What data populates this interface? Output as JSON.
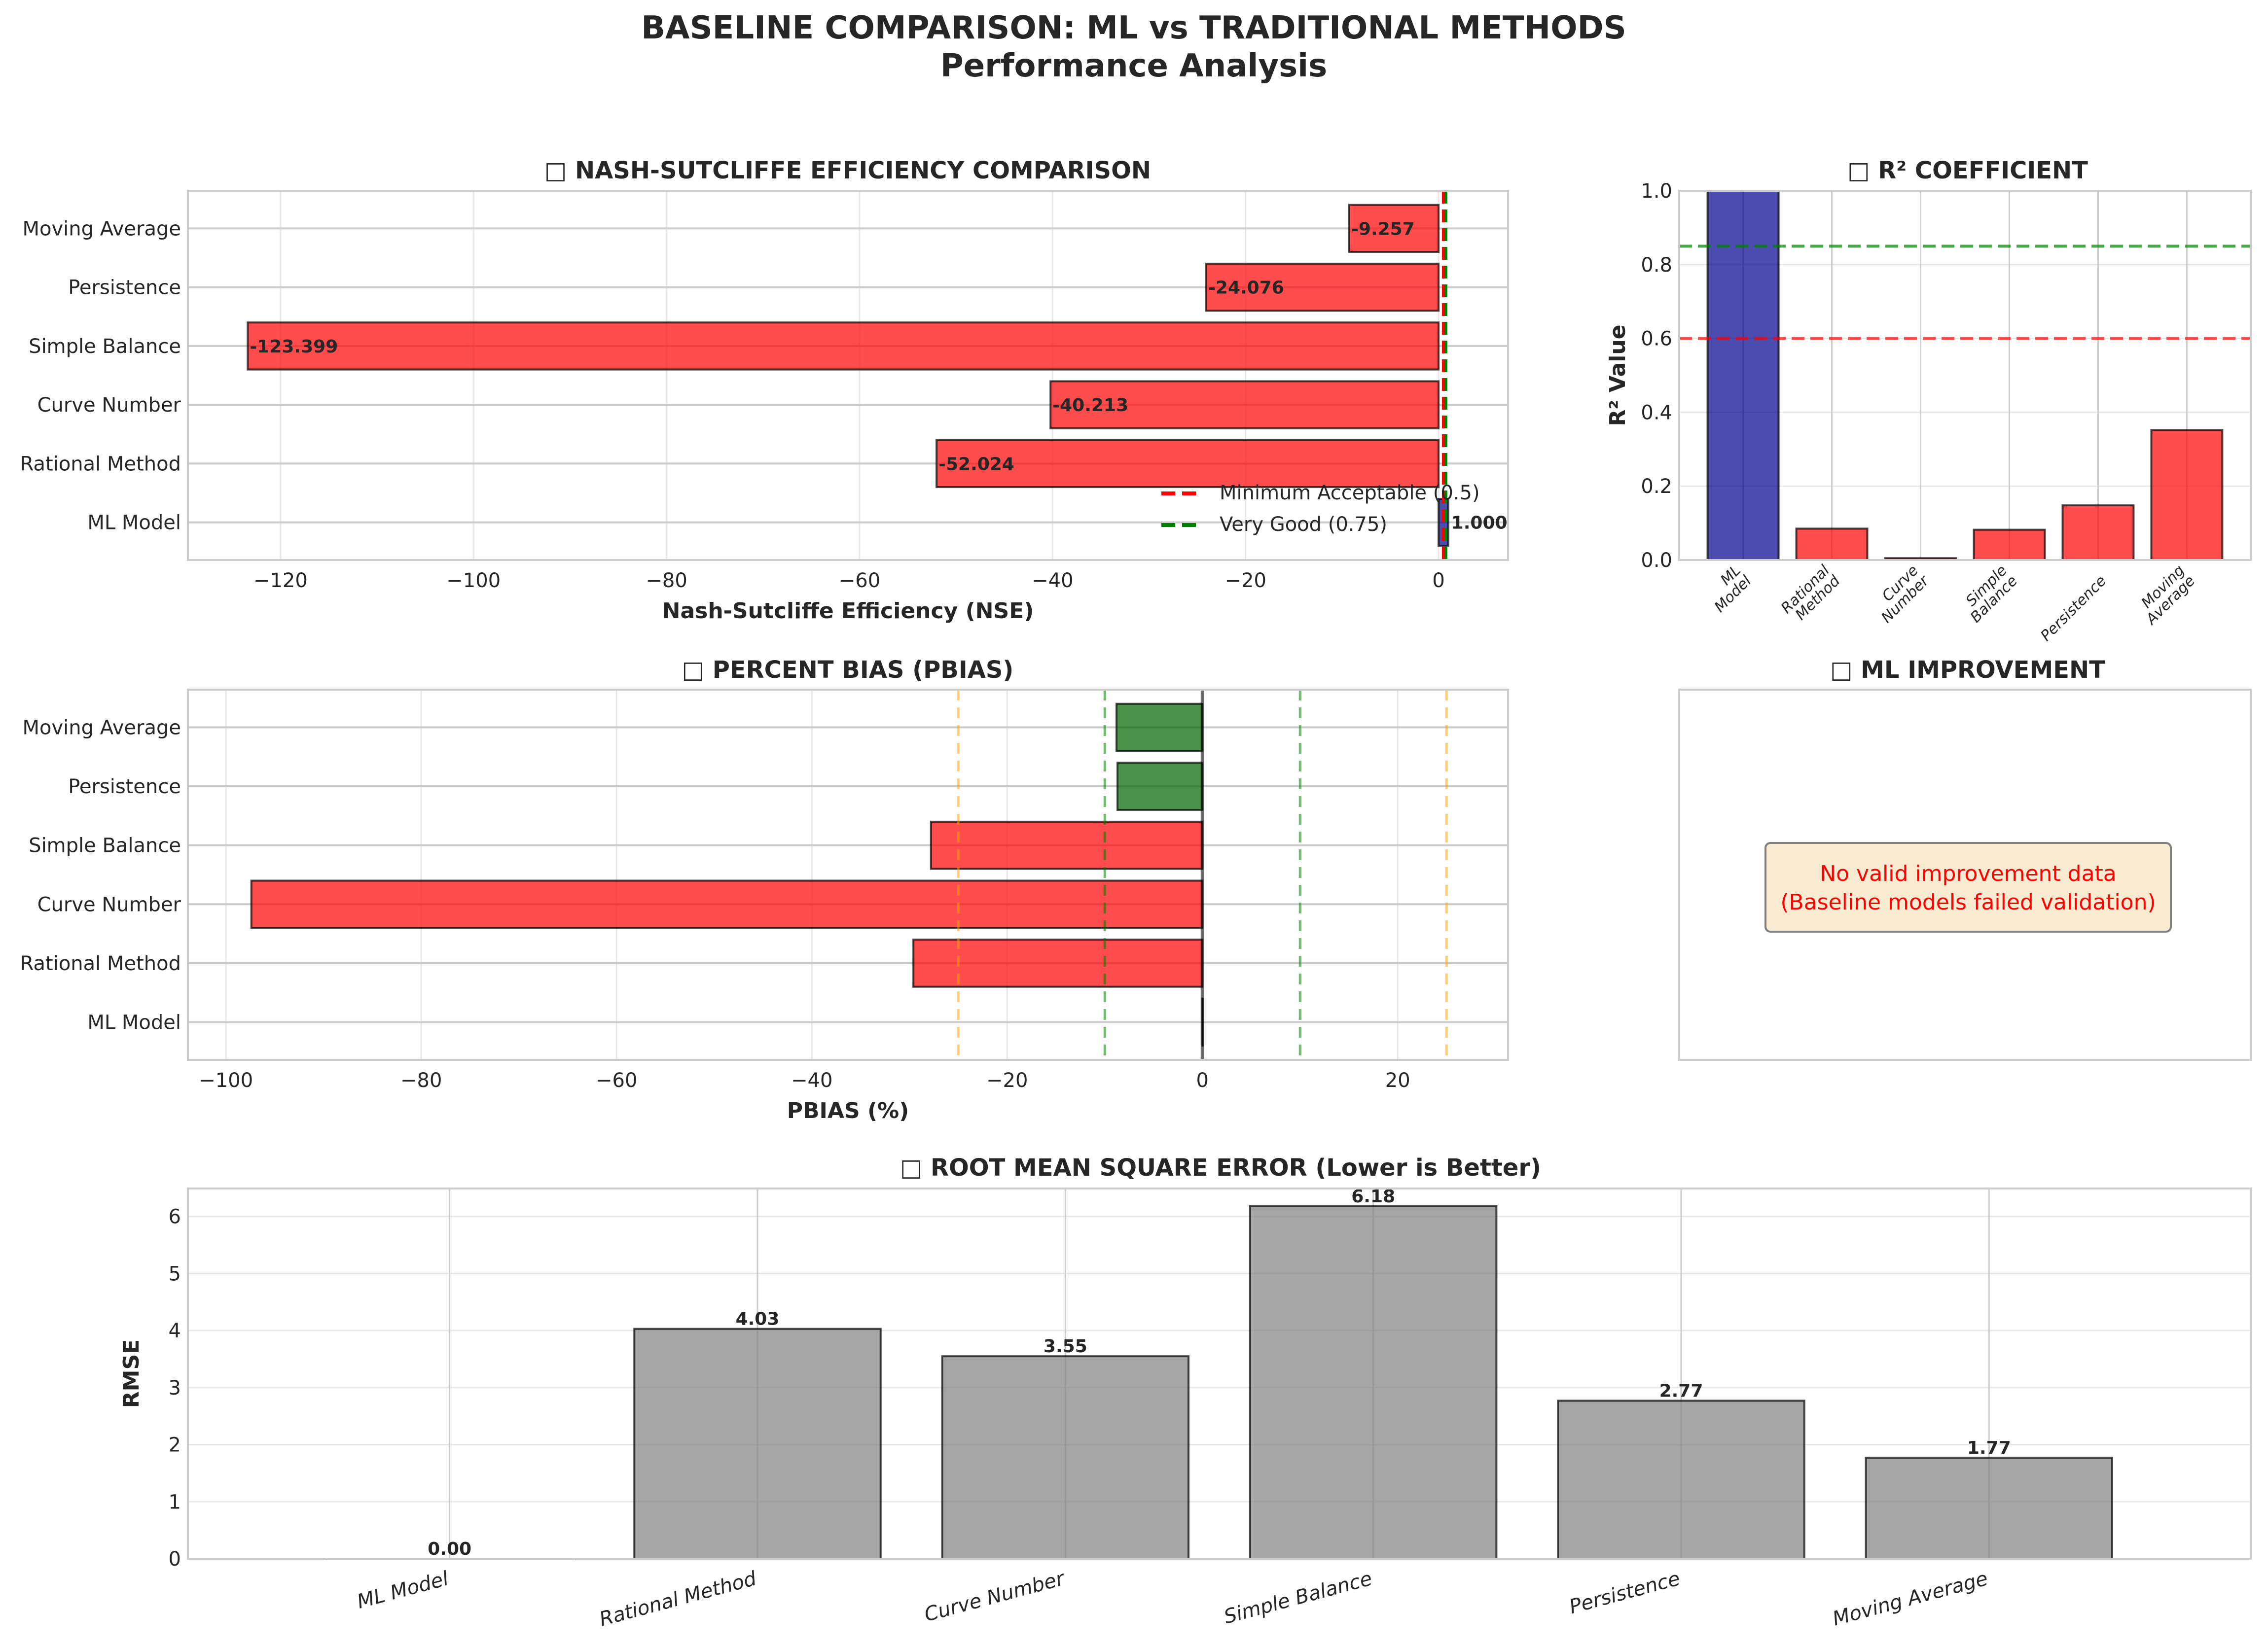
{
  "title": {
    "line1": "BASELINE COMPARISON: ML vs TRADITIONAL METHODS",
    "line2": "Performance Analysis"
  },
  "colors": {
    "ml": "#00008b",
    "fail": "#ff0000",
    "good": "#006400",
    "rmse": "#808080",
    "threshold_red": "#ff0000",
    "threshold_green": "#008000",
    "threshold_orange": "#ffa500",
    "note_bg": "#f5deb3",
    "note_text": "#ff0000"
  },
  "chart_data": [
    {
      "id": "nse",
      "type": "bar",
      "orientation": "horizontal",
      "title": "□ NASH-SUTCLIFFE EFFICIENCY COMPARISON",
      "xlabel": "Nash-Sutcliffe Efficiency (NSE)",
      "ylabel": "",
      "categories": [
        "ML Model",
        "Rational Method",
        "Curve Number",
        "Simple Balance",
        "Persistence",
        "Moving Average"
      ],
      "values": [
        1.0,
        -52.024,
        -40.213,
        -123.399,
        -24.076,
        -9.257
      ],
      "value_labels": [
        "1.000",
        "-52.024",
        "-40.213",
        "-123.399",
        "-24.076",
        "-9.257"
      ],
      "bar_colors": [
        "ml",
        "fail",
        "fail",
        "fail",
        "fail",
        "fail"
      ],
      "xlim": [
        -129.6,
        7.2
      ],
      "xticks": [
        -120,
        -100,
        -80,
        -60,
        -40,
        -20,
        0
      ],
      "xtick_labels": [
        "−120",
        "−100",
        "−80",
        "−60",
        "−40",
        "−20",
        "0"
      ],
      "reference_lines": [
        {
          "value": 0.5,
          "label": "Minimum Acceptable (0.5)",
          "color": "threshold_red"
        },
        {
          "value": 0.75,
          "label": "Very Good (0.75)",
          "color": "threshold_green"
        }
      ],
      "legend": "lower-right",
      "grid": true
    },
    {
      "id": "r2",
      "type": "bar",
      "title": "□ R² COEFFICIENT",
      "xlabel": "",
      "ylabel": "R² Value",
      "categories": [
        "ML\nModel",
        "Rational\nMethod",
        "Curve\nNumber",
        "Simple\nBalance",
        "Persistence",
        "Moving\nAverage"
      ],
      "values": [
        1.0,
        0.085,
        0.005,
        0.082,
        0.148,
        0.352
      ],
      "bar_colors": [
        "ml",
        "fail",
        "fail",
        "fail",
        "fail",
        "fail"
      ],
      "ylim": [
        0,
        1.0
      ],
      "yticks": [
        0.0,
        0.2,
        0.4,
        0.6,
        0.8,
        1.0
      ],
      "ytick_labels": [
        "0.0",
        "0.2",
        "0.4",
        "0.6",
        "0.8",
        "1.0"
      ],
      "reference_lines": [
        {
          "value": 0.85,
          "color": "threshold_green"
        },
        {
          "value": 0.6,
          "color": "threshold_red"
        }
      ],
      "grid": true
    },
    {
      "id": "pbias",
      "type": "bar",
      "orientation": "horizontal",
      "title": "□ PERCENT BIAS (PBIAS)",
      "xlabel": "PBIAS (%)",
      "ylabel": "",
      "categories": [
        "ML Model",
        "Rational Method",
        "Curve Number",
        "Simple Balance",
        "Persistence",
        "Moving Average"
      ],
      "values": [
        0.0,
        -29.6,
        -97.4,
        -27.8,
        -8.7,
        -8.8
      ],
      "bar_colors": [
        "good",
        "fail",
        "fail",
        "fail",
        "good",
        "good"
      ],
      "xlim": [
        -103.9,
        31.3
      ],
      "xticks": [
        -100,
        -80,
        -60,
        -40,
        -20,
        0,
        20
      ],
      "xtick_labels": [
        "−100",
        "−80",
        "−60",
        "−40",
        "−20",
        "0",
        "20"
      ],
      "reference_lines": [
        {
          "value": 0,
          "color": "#000000",
          "style": "solid"
        },
        {
          "value": -10,
          "color": "threshold_green"
        },
        {
          "value": 10,
          "color": "threshold_green"
        },
        {
          "value": -25,
          "color": "threshold_orange"
        },
        {
          "value": 25,
          "color": "threshold_orange"
        }
      ],
      "grid": true
    },
    {
      "id": "improvement",
      "type": "bar",
      "title": "□ ML IMPROVEMENT",
      "note_line1": "No valid improvement data",
      "note_line2": "(Baseline models failed validation)"
    },
    {
      "id": "rmse",
      "type": "bar",
      "title": "□ ROOT MEAN SQUARE ERROR (Lower is Better)",
      "xlabel": "",
      "ylabel": "RMSE",
      "categories": [
        "ML Model",
        "Rational Method",
        "Curve Number",
        "Simple Balance",
        "Persistence",
        "Moving Average"
      ],
      "values": [
        0.0,
        4.03,
        3.55,
        6.18,
        2.77,
        1.77
      ],
      "value_labels": [
        "0.00",
        "4.03",
        "3.55",
        "6.18",
        "2.77",
        "1.77"
      ],
      "bar_colors": [
        "rmse",
        "rmse",
        "rmse",
        "rmse",
        "rmse",
        "rmse"
      ],
      "ylim": [
        0,
        6.49
      ],
      "yticks": [
        0,
        1,
        2,
        3,
        4,
        5,
        6
      ],
      "ytick_labels": [
        "0",
        "1",
        "2",
        "3",
        "4",
        "5",
        "6"
      ],
      "grid": true
    }
  ]
}
